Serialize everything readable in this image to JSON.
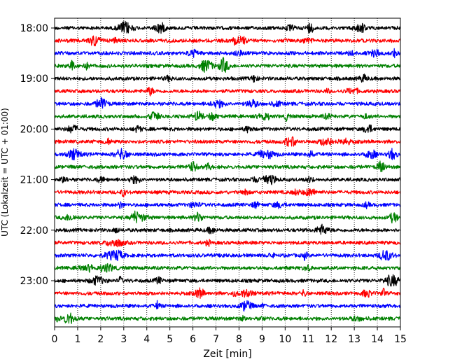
{
  "chart_data": {
    "type": "line",
    "xlabel": "Zeit  [min]",
    "ylabel": "UTC (Lokalzeit = UTC + 01:00)",
    "xlim": [
      0,
      15
    ],
    "x_ticks": [
      "0",
      "1",
      "2",
      "3",
      "4",
      "5",
      "6",
      "7",
      "8",
      "9",
      "10",
      "11",
      "12",
      "13",
      "14",
      "15"
    ],
    "y_ticks": [
      "18:00",
      "19:00",
      "20:00",
      "21:00",
      "22:00",
      "23:00"
    ],
    "grid": {
      "vertical": "dotted",
      "horizontal": "none"
    },
    "trace_colors": [
      "#000000",
      "#ff0000",
      "#0000ff",
      "#008000"
    ],
    "traces": [
      {
        "start": "18:00",
        "color": "#000000"
      },
      {
        "start": "18:15",
        "color": "#ff0000"
      },
      {
        "start": "18:30",
        "color": "#0000ff"
      },
      {
        "start": "18:45",
        "color": "#008000"
      },
      {
        "start": "19:00",
        "color": "#000000"
      },
      {
        "start": "19:15",
        "color": "#ff0000"
      },
      {
        "start": "19:30",
        "color": "#0000ff"
      },
      {
        "start": "19:45",
        "color": "#008000"
      },
      {
        "start": "20:00",
        "color": "#000000"
      },
      {
        "start": "20:15",
        "color": "#ff0000"
      },
      {
        "start": "20:30",
        "color": "#0000ff"
      },
      {
        "start": "20:45",
        "color": "#008000"
      },
      {
        "start": "21:00",
        "color": "#000000"
      },
      {
        "start": "21:15",
        "color": "#ff0000"
      },
      {
        "start": "21:30",
        "color": "#0000ff"
      },
      {
        "start": "21:45",
        "color": "#008000"
      },
      {
        "start": "22:00",
        "color": "#000000"
      },
      {
        "start": "22:15",
        "color": "#ff0000"
      },
      {
        "start": "22:30",
        "color": "#0000ff"
      },
      {
        "start": "22:45",
        "color": "#008000"
      },
      {
        "start": "23:00",
        "color": "#000000"
      },
      {
        "start": "23:15",
        "color": "#ff0000"
      },
      {
        "start": "23:30",
        "color": "#0000ff"
      },
      {
        "start": "23:45",
        "color": "#008000"
      }
    ]
  }
}
